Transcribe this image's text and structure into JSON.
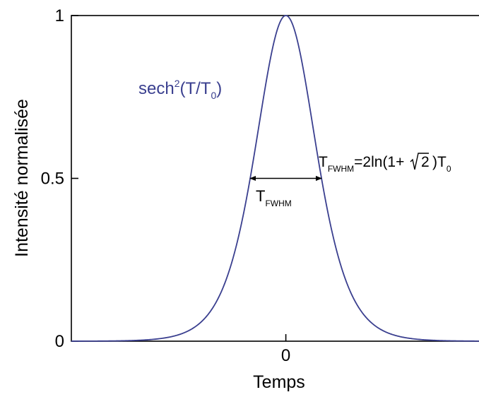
{
  "chart_data": {
    "type": "line",
    "title": "",
    "xlabel": "Temps",
    "ylabel": "Intensité normalisée",
    "x_ticks": [
      {
        "value": 0,
        "label": "0"
      }
    ],
    "y_ticks": [
      {
        "value": 0,
        "label": "0"
      },
      {
        "value": 0.5,
        "label": "0.5"
      },
      {
        "value": 1,
        "label": "1"
      }
    ],
    "xlim": [
      -5.3,
      5.0
    ],
    "ylim": [
      0,
      1
    ],
    "grid": false,
    "series": [
      {
        "name": "sech²(T/T₀)",
        "function": "sech^2(T/T0)",
        "T0": 1,
        "color": "#3a3f8f",
        "x_range": [
          -5.3,
          5.0
        ],
        "sample_points": [
          [
            -5.3,
            0.0001
          ],
          [
            -4,
            0.0013
          ],
          [
            -3,
            0.0099
          ],
          [
            -2,
            0.0707
          ],
          [
            -1.5,
            0.1807
          ],
          [
            -1,
            0.42
          ],
          [
            -0.5,
            0.7864
          ],
          [
            0,
            1
          ],
          [
            0.5,
            0.7864
          ],
          [
            1,
            0.42
          ],
          [
            1.5,
            0.1807
          ],
          [
            2,
            0.0707
          ],
          [
            3,
            0.0099
          ],
          [
            4,
            0.0013
          ],
          [
            5.0,
            0.0002
          ]
        ]
      }
    ],
    "annotations": {
      "curve_label": {
        "base": "sech",
        "sup": "2",
        "mid": "(T/T",
        "sub": "0",
        "tail": ")"
      },
      "fwhm_marker": {
        "y": 0.5,
        "x_from": -0.8814,
        "x_to": 0.8814,
        "label_base": "T",
        "label_sub": "FWHM"
      },
      "formula": {
        "t": "T",
        "sub": "FWHM",
        "eq": "=2ln(1+",
        "radicand": "2",
        "close": ")T",
        "sub0": "0"
      }
    }
  }
}
